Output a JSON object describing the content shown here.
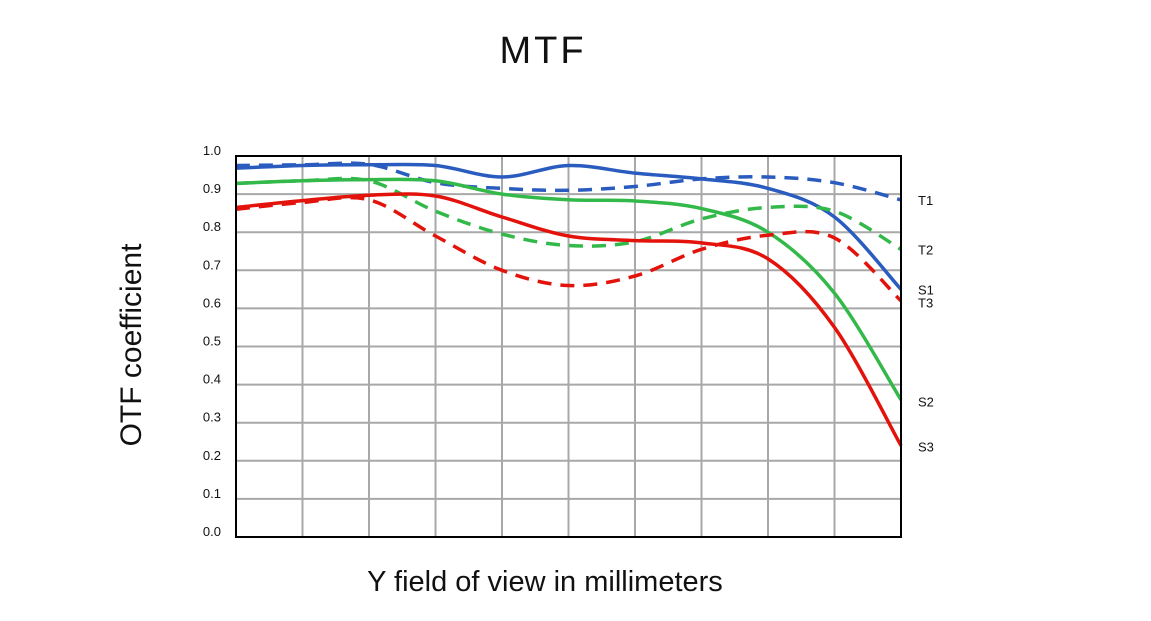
{
  "chart_data": {
    "type": "line",
    "title": "MTF",
    "xlabel": "Y field of view in millimeters",
    "ylabel": "OTF coefficient",
    "xlim": [
      0,
      10
    ],
    "ylim": [
      0,
      1
    ],
    "x_ticks": [
      0,
      1,
      2,
      3,
      4,
      5,
      6,
      7,
      8,
      9,
      10
    ],
    "y_ticks": [
      "0.0",
      "0.1",
      "0.2",
      "0.3",
      "0.4",
      "0.5",
      "0.6",
      "0.7",
      "0.8",
      "0.9",
      "1.0"
    ],
    "grid": true,
    "x": [
      0,
      1,
      2,
      3,
      4,
      5,
      6,
      7,
      8,
      9,
      10
    ],
    "series": [
      {
        "name": "T1",
        "color": "#2a5cbf",
        "dash": true,
        "values": [
          0.975,
          0.977,
          0.978,
          0.93,
          0.915,
          0.91,
          0.92,
          0.94,
          0.945,
          0.93,
          0.885
        ]
      },
      {
        "name": "S1",
        "color": "#2a5cbf",
        "dash": false,
        "values": [
          0.968,
          0.975,
          0.977,
          0.975,
          0.945,
          0.975,
          0.955,
          0.94,
          0.915,
          0.84,
          0.65
        ]
      },
      {
        "name": "T2",
        "color": "#33b94a",
        "dash": true,
        "values": [
          0.928,
          0.935,
          0.935,
          0.855,
          0.795,
          0.765,
          0.775,
          0.835,
          0.865,
          0.855,
          0.755
        ]
      },
      {
        "name": "S2",
        "color": "#33b94a",
        "dash": false,
        "values": [
          0.928,
          0.935,
          0.938,
          0.935,
          0.9,
          0.885,
          0.882,
          0.862,
          0.8,
          0.64,
          0.36
        ]
      },
      {
        "name": "T3",
        "color": "#e3120b",
        "dash": true,
        "values": [
          0.86,
          0.878,
          0.885,
          0.79,
          0.7,
          0.66,
          0.685,
          0.755,
          0.792,
          0.785,
          0.62
        ]
      },
      {
        "name": "S3",
        "color": "#e3120b",
        "dash": false,
        "values": [
          0.865,
          0.883,
          0.897,
          0.895,
          0.84,
          0.79,
          0.778,
          0.772,
          0.73,
          0.55,
          0.24
        ]
      }
    ],
    "end_labels": [
      {
        "text": "T1",
        "value": 0.885
      },
      {
        "text": "T2",
        "value": 0.755
      },
      {
        "text": "S1",
        "value": 0.65
      },
      {
        "text": "T3",
        "value": 0.615
      },
      {
        "text": "S2",
        "value": 0.355
      },
      {
        "text": "S3",
        "value": 0.237
      }
    ]
  }
}
